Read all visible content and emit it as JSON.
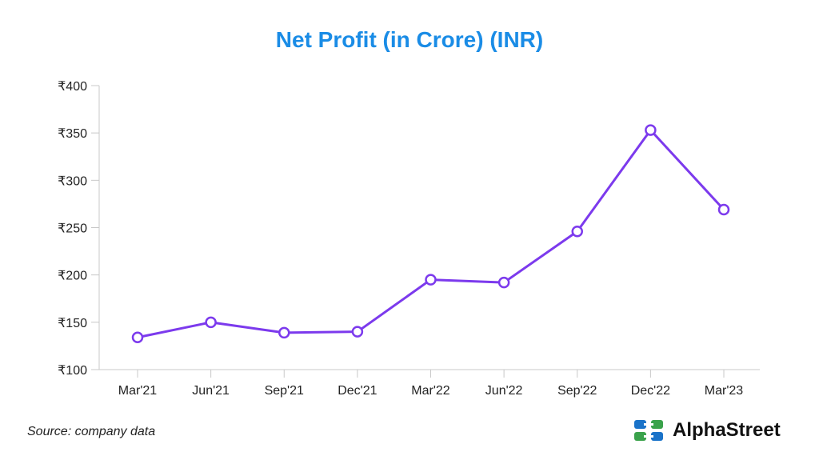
{
  "title": "Net Profit (in Crore) (INR)",
  "source": "Source: company data",
  "brand": {
    "name": "AlphaStreet",
    "icon": "alphastreet-logo-icon"
  },
  "colors": {
    "title": "#1a8ce6",
    "line": "#7c3aed",
    "axis": "#c8c8c8",
    "text": "#222222"
  },
  "chart_data": {
    "type": "line",
    "categories": [
      "Mar'21",
      "Jun'21",
      "Sep'21",
      "Dec'21",
      "Mar'22",
      "Jun'22",
      "Sep'22",
      "Dec'22",
      "Mar'23"
    ],
    "values": [
      134,
      150,
      139,
      140,
      195,
      192,
      246,
      353,
      269
    ],
    "ylim": [
      100,
      400
    ],
    "yticks": [
      100,
      150,
      200,
      250,
      300,
      350,
      400
    ],
    "ytick_labels": [
      "₹100",
      "₹150",
      "₹200",
      "₹250",
      "₹300",
      "₹350",
      "₹400"
    ],
    "grid": false,
    "legend": "none"
  }
}
